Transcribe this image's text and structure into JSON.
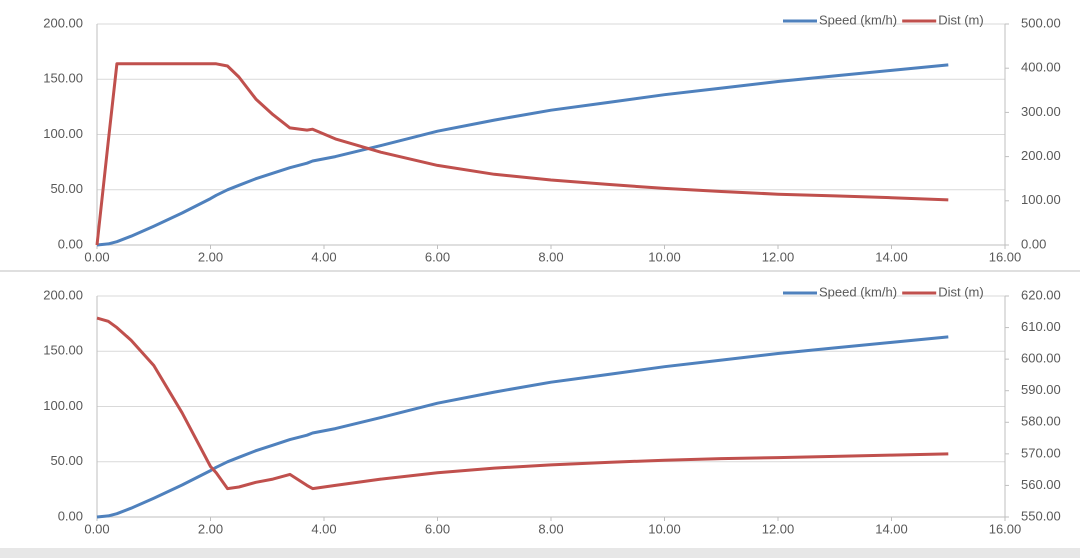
{
  "chart_data": [
    {
      "type": "line",
      "legend": "top-right",
      "grid": true,
      "x": [
        0,
        0.2,
        0.35,
        0.6,
        1,
        1.5,
        2,
        2.1,
        2.3,
        2.5,
        2.8,
        3.1,
        3.4,
        3.7,
        3.8,
        4.2,
        5,
        6,
        7,
        8,
        9,
        10,
        11,
        12,
        13,
        14,
        15
      ],
      "series": [
        {
          "name": "Speed (km/h)",
          "color": "#4f81bd",
          "values": [
            0,
            1,
            3,
            8,
            17,
            29,
            42,
            45,
            50,
            54,
            60,
            65,
            70,
            74,
            76,
            80,
            90,
            103,
            113,
            122,
            129,
            136,
            142,
            148,
            153,
            158,
            163
          ]
        },
        {
          "name": "Dist (m)",
          "color": "#c0504d",
          "axis": "y2",
          "values": [
            0,
            235,
            410,
            410,
            410,
            410,
            410,
            410,
            405,
            380,
            330,
            295,
            265,
            260,
            262,
            240,
            210,
            180,
            160,
            147,
            137,
            128,
            121,
            115,
            111,
            107,
            102
          ]
        }
      ],
      "xlim": [
        0,
        16
      ],
      "xticks": [
        {
          "value": 0,
          "label": "0.00"
        },
        {
          "value": 2,
          "label": "2.00"
        },
        {
          "value": 4,
          "label": "4.00"
        },
        {
          "value": 6,
          "label": "6.00"
        },
        {
          "value": 8,
          "label": "8.00"
        },
        {
          "value": 10,
          "label": "10.00"
        },
        {
          "value": 12,
          "label": "12.00"
        },
        {
          "value": 14,
          "label": "14.00"
        },
        {
          "value": 16,
          "label": "16.00"
        }
      ],
      "ylim": [
        0,
        200
      ],
      "yticks": [
        {
          "value": 0,
          "label": "0.00"
        },
        {
          "value": 50,
          "label": "50.00"
        },
        {
          "value": 100,
          "label": "100.00"
        },
        {
          "value": 150,
          "label": "150.00"
        },
        {
          "value": 200,
          "label": "200.00"
        }
      ],
      "y2lim": [
        0,
        500
      ],
      "y2ticks": [
        {
          "value": 0,
          "label": "0.00"
        },
        {
          "value": 100,
          "label": "100.00"
        },
        {
          "value": 200,
          "label": "200.00"
        },
        {
          "value": 300,
          "label": "300.00"
        },
        {
          "value": 400,
          "label": "400.00"
        },
        {
          "value": 500,
          "label": "500.00"
        }
      ]
    },
    {
      "type": "line",
      "legend": "top-right",
      "grid": true,
      "x": [
        0,
        0.2,
        0.35,
        0.6,
        1,
        1.5,
        2,
        2.1,
        2.3,
        2.5,
        2.8,
        3.1,
        3.4,
        3.7,
        3.8,
        4.2,
        5,
        6,
        7,
        8,
        9,
        10,
        11,
        12,
        13,
        14,
        15
      ],
      "series": [
        {
          "name": "Speed (km/h)",
          "color": "#4f81bd",
          "values": [
            0,
            1,
            3,
            8,
            17,
            29,
            42,
            45,
            50,
            54,
            60,
            65,
            70,
            74,
            76,
            80,
            90,
            103,
            113,
            122,
            129,
            136,
            142,
            148,
            153,
            158,
            163
          ]
        },
        {
          "name": "Dist (m)",
          "color": "#c0504d",
          "axis": "y2",
          "values": [
            613,
            612,
            610,
            606,
            598,
            583,
            566,
            564,
            559,
            559.5,
            561,
            562,
            563.5,
            560,
            559,
            560,
            562,
            564,
            565.5,
            566.5,
            567.3,
            568,
            568.5,
            568.8,
            569.2,
            569.6,
            570
          ]
        }
      ],
      "xlim": [
        0,
        16
      ],
      "xticks": [
        {
          "value": 0,
          "label": "0.00"
        },
        {
          "value": 2,
          "label": "2.00"
        },
        {
          "value": 4,
          "label": "4.00"
        },
        {
          "value": 6,
          "label": "6.00"
        },
        {
          "value": 8,
          "label": "8.00"
        },
        {
          "value": 10,
          "label": "10.00"
        },
        {
          "value": 12,
          "label": "12.00"
        },
        {
          "value": 14,
          "label": "14.00"
        },
        {
          "value": 16,
          "label": "16.00"
        }
      ],
      "ylim": [
        0,
        200
      ],
      "yticks": [
        {
          "value": 0,
          "label": "0.00"
        },
        {
          "value": 50,
          "label": "50.00"
        },
        {
          "value": 100,
          "label": "100.00"
        },
        {
          "value": 150,
          "label": "150.00"
        },
        {
          "value": 200,
          "label": "200.00"
        }
      ],
      "y2lim": [
        550,
        620
      ],
      "y2ticks": [
        {
          "value": 550,
          "label": "550.00"
        },
        {
          "value": 560,
          "label": "560.00"
        },
        {
          "value": 570,
          "label": "570.00"
        },
        {
          "value": 580,
          "label": "580.00"
        },
        {
          "value": 590,
          "label": "590.00"
        },
        {
          "value": 600,
          "label": "600.00"
        },
        {
          "value": 610,
          "label": "610.00"
        },
        {
          "value": 620,
          "label": "620.00"
        }
      ]
    }
  ]
}
